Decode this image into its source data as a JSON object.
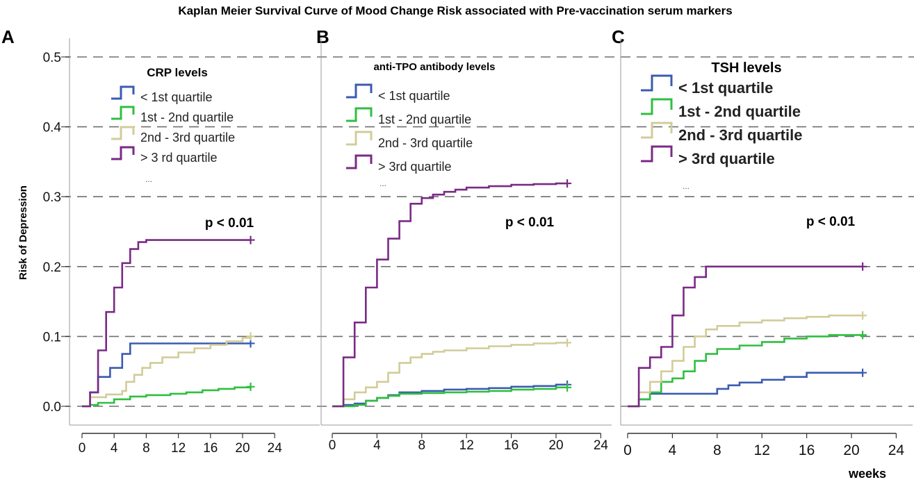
{
  "figure": {
    "title": "Kaplan Meier Survival Curve of Mood Change Risk associated with Pre-vaccination serum markers",
    "ylabel": "Risk of Depression",
    "xlabel": "weeks"
  },
  "colors": {
    "q1": "#3a5bb0",
    "q2": "#2fbf3f",
    "q3": "#d2cc98",
    "q4": "#7a2a85",
    "grid": "#6e6e6e",
    "axis": "#333333"
  },
  "chart_data": [
    {
      "panel": "A",
      "type": "line",
      "step": true,
      "legend_title": "CRP levels",
      "legend_labels": [
        "< 1st quartile",
        "1st - 2nd quartile",
        "2nd - 3rd quartile",
        "> 3 rd quartile"
      ],
      "legend_ellipsis": "...",
      "pvalue": "p < 0.01",
      "x_ticks": [
        0,
        4,
        8,
        12,
        16,
        20,
        24
      ],
      "y_ticks": [
        "0.0",
        "0.1",
        "0.2",
        "0.3",
        "0.4",
        "0.5"
      ],
      "xlim": [
        0,
        24
      ],
      "ylim": [
        0,
        0.5
      ],
      "series": [
        {
          "name": "< 1st quartile",
          "color_key": "q1",
          "x": [
            0,
            1,
            2,
            3.5,
            5,
            6,
            21
          ],
          "y": [
            0,
            0.02,
            0.042,
            0.055,
            0.075,
            0.09,
            0.09
          ]
        },
        {
          "name": "1st - 2nd quartile",
          "color_key": "q2",
          "x": [
            0,
            1,
            2,
            4,
            6,
            8,
            11,
            13,
            15,
            17,
            19,
            21
          ],
          "y": [
            0,
            0.002,
            0.005,
            0.01,
            0.014,
            0.016,
            0.018,
            0.02,
            0.023,
            0.025,
            0.027,
            0.028
          ]
        },
        {
          "name": "2nd - 3rd quartile",
          "color_key": "q3",
          "x": [
            0,
            1,
            3,
            5,
            5.5,
            6.5,
            7.5,
            8.5,
            10,
            12,
            14,
            16,
            18,
            20,
            21
          ],
          "y": [
            0,
            0.013,
            0.017,
            0.022,
            0.035,
            0.045,
            0.055,
            0.062,
            0.07,
            0.077,
            0.083,
            0.088,
            0.093,
            0.098,
            0.1
          ]
        },
        {
          "name": "> 3 rd quartile",
          "color_key": "q4",
          "x": [
            0,
            1,
            2,
            3,
            4,
            5,
            6,
            7,
            8,
            21
          ],
          "y": [
            0,
            0.02,
            0.08,
            0.135,
            0.17,
            0.205,
            0.225,
            0.235,
            0.238,
            0.238
          ]
        }
      ]
    },
    {
      "panel": "B",
      "type": "line",
      "step": true,
      "legend_title": "anti-TPO antibody levels",
      "legend_labels": [
        "< 1st quartile",
        "1st - 2nd quartile",
        "2nd - 3rd quartile",
        "> 3rd quartile"
      ],
      "legend_ellipsis": "...",
      "pvalue": "p < 0.01",
      "x_ticks": [
        0,
        4,
        8,
        12,
        16,
        20,
        24
      ],
      "y_ticks": [],
      "xlim": [
        0,
        24
      ],
      "ylim": [
        0,
        0.5
      ],
      "series": [
        {
          "name": "< 1st quartile",
          "color_key": "q1",
          "x": [
            0,
            1,
            2,
            3,
            4,
            5,
            6,
            8,
            10,
            12,
            14,
            16,
            18,
            20,
            21
          ],
          "y": [
            0,
            0.002,
            0.004,
            0.008,
            0.012,
            0.016,
            0.02,
            0.022,
            0.024,
            0.025,
            0.026,
            0.028,
            0.029,
            0.031,
            0.031
          ]
        },
        {
          "name": "1st - 2nd quartile",
          "color_key": "q2",
          "x": [
            0,
            1,
            2,
            3,
            4,
            5,
            6,
            8,
            10,
            12,
            14,
            16,
            18,
            20,
            21
          ],
          "y": [
            0,
            0,
            0.002,
            0.008,
            0.012,
            0.015,
            0.018,
            0.019,
            0.02,
            0.021,
            0.022,
            0.024,
            0.025,
            0.027,
            0.027
          ]
        },
        {
          "name": "2nd - 3rd quartile",
          "color_key": "q3",
          "x": [
            0,
            1,
            2,
            3,
            4,
            5,
            6,
            7,
            8,
            9,
            10,
            12,
            14,
            16,
            18,
            20,
            21
          ],
          "y": [
            0,
            0.01,
            0.02,
            0.027,
            0.035,
            0.048,
            0.062,
            0.07,
            0.075,
            0.078,
            0.08,
            0.083,
            0.086,
            0.088,
            0.09,
            0.091,
            0.091
          ]
        },
        {
          "name": "> 3rd quartile",
          "color_key": "q4",
          "x": [
            0,
            1,
            2,
            3,
            4,
            5,
            6,
            7,
            8,
            9,
            10,
            11,
            12,
            14,
            16,
            18,
            20,
            21
          ],
          "y": [
            0,
            0.07,
            0.12,
            0.17,
            0.21,
            0.24,
            0.265,
            0.29,
            0.298,
            0.303,
            0.307,
            0.31,
            0.313,
            0.315,
            0.317,
            0.318,
            0.319,
            0.319
          ]
        }
      ]
    },
    {
      "panel": "C",
      "type": "line",
      "step": true,
      "legend_title": "TSH levels",
      "legend_labels": [
        "< 1st quartile",
        "1st - 2nd quartile",
        "2nd - 3rd quartile",
        "> 3rd quartile"
      ],
      "legend_ellipsis": "...",
      "pvalue": "p < 0.01",
      "x_ticks": [
        0,
        4,
        8,
        12,
        16,
        20,
        24
      ],
      "y_ticks": [],
      "xlim": [
        0,
        24
      ],
      "ylim": [
        0,
        0.5
      ],
      "series": [
        {
          "name": "< 1st quartile",
          "color_key": "q1",
          "x": [
            0,
            1,
            2,
            4,
            6,
            8,
            9,
            10,
            12,
            14,
            16,
            21
          ],
          "y": [
            0,
            0.01,
            0.018,
            0.018,
            0.018,
            0.025,
            0.03,
            0.034,
            0.038,
            0.042,
            0.048,
            0.048
          ]
        },
        {
          "name": "1st - 2nd quartile",
          "color_key": "q2",
          "x": [
            0,
            1,
            2,
            3,
            4,
            5,
            6,
            7,
            8,
            10,
            12,
            14,
            16,
            18,
            21
          ],
          "y": [
            0,
            0.01,
            0.02,
            0.035,
            0.04,
            0.05,
            0.065,
            0.075,
            0.082,
            0.087,
            0.092,
            0.097,
            0.1,
            0.102,
            0.102
          ]
        },
        {
          "name": "2nd - 3rd quartile",
          "color_key": "q3",
          "x": [
            0,
            1,
            2,
            3,
            4,
            5,
            6,
            7,
            8,
            10,
            12,
            14,
            16,
            18,
            21
          ],
          "y": [
            0,
            0.02,
            0.035,
            0.05,
            0.065,
            0.085,
            0.1,
            0.11,
            0.115,
            0.12,
            0.123,
            0.126,
            0.128,
            0.13,
            0.13
          ]
        },
        {
          "name": "> 3rd quartile",
          "color_key": "q4",
          "x": [
            0,
            1,
            2,
            3,
            4,
            5,
            6,
            7,
            21
          ],
          "y": [
            0,
            0.055,
            0.07,
            0.085,
            0.13,
            0.17,
            0.185,
            0.2,
            0.2
          ]
        }
      ]
    }
  ]
}
